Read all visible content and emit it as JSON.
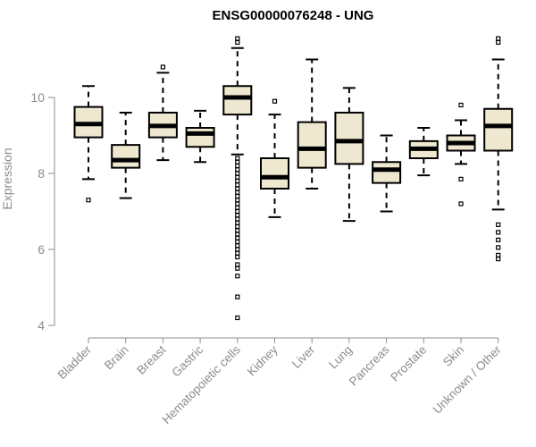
{
  "chart_data": {
    "type": "boxplot",
    "title": "ENSG00000076248 - UNG",
    "ylabel": "Expression",
    "xlabel": "",
    "ylim": [
      4,
      11.6
    ],
    "yticks": [
      4,
      6,
      8,
      10
    ],
    "grid": false,
    "colors": {
      "box_fill": "#efe8d1",
      "box_stroke": "#000000",
      "axis": "#8c8c8c"
    },
    "categories": [
      "Bladder",
      "Brain",
      "Breast",
      "Gastric",
      "Hematopoietic cells",
      "Kidney",
      "Liver",
      "Lung",
      "Pancreas",
      "Prostate",
      "Skin",
      "Unknown / Other"
    ],
    "boxes": [
      {
        "min": 7.85,
        "q1": 8.95,
        "median": 9.3,
        "q3": 9.75,
        "max": 10.3,
        "outliers": [
          7.3
        ]
      },
      {
        "min": 7.35,
        "q1": 8.15,
        "median": 8.35,
        "q3": 8.75,
        "max": 9.6,
        "outliers": []
      },
      {
        "min": 8.35,
        "q1": 8.95,
        "median": 9.25,
        "q3": 9.6,
        "max": 10.65,
        "outliers": [
          10.8
        ]
      },
      {
        "min": 8.3,
        "q1": 8.7,
        "median": 9.05,
        "q3": 9.2,
        "max": 9.65,
        "outliers": []
      },
      {
        "min": 8.5,
        "q1": 9.55,
        "median": 10.0,
        "q3": 10.3,
        "max": 11.3,
        "outliers": [
          11.45,
          11.55,
          4.2,
          4.75,
          5.3,
          5.5,
          5.6,
          5.8,
          5.9,
          6.0,
          6.1,
          6.2,
          6.3,
          6.4,
          6.5,
          6.6,
          6.7,
          6.8,
          6.9,
          7.0,
          7.1,
          7.2,
          7.3,
          7.4,
          7.5,
          7.6,
          7.7,
          7.8,
          7.9,
          8.0,
          8.1,
          8.2,
          8.3,
          8.4
        ]
      },
      {
        "min": 6.85,
        "q1": 7.6,
        "median": 7.9,
        "q3": 8.4,
        "max": 9.55,
        "outliers": [
          9.9
        ]
      },
      {
        "min": 7.6,
        "q1": 8.15,
        "median": 8.65,
        "q3": 9.35,
        "max": 11.0,
        "outliers": []
      },
      {
        "min": 6.75,
        "q1": 8.25,
        "median": 8.85,
        "q3": 9.6,
        "max": 10.25,
        "outliers": []
      },
      {
        "min": 7.0,
        "q1": 7.75,
        "median": 8.1,
        "q3": 8.3,
        "max": 9.0,
        "outliers": []
      },
      {
        "min": 7.95,
        "q1": 8.4,
        "median": 8.65,
        "q3": 8.85,
        "max": 9.2,
        "outliers": []
      },
      {
        "min": 8.25,
        "q1": 8.6,
        "median": 8.8,
        "q3": 9.0,
        "max": 9.4,
        "outliers": [
          9.8,
          7.85,
          7.2
        ]
      },
      {
        "min": 7.05,
        "q1": 8.6,
        "median": 9.25,
        "q3": 9.7,
        "max": 11.0,
        "outliers": [
          11.45,
          11.55,
          6.65,
          6.45,
          6.25,
          6.05,
          5.85,
          5.75
        ]
      }
    ]
  }
}
